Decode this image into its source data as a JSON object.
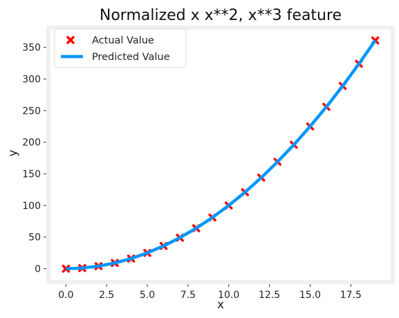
{
  "chart_data": {
    "type": "scatter",
    "title": "Normalized x x**2, x**3 feature",
    "xlabel": "x",
    "ylabel": "y",
    "xlim": [
      -0.95,
      19.95
    ],
    "ylim": [
      -18,
      378
    ],
    "xticks": [
      0.0,
      2.5,
      5.0,
      7.5,
      10.0,
      12.5,
      15.0,
      17.5
    ],
    "xtick_labels": [
      "0.0",
      "2.5",
      "5.0",
      "7.5",
      "10.0",
      "12.5",
      "15.0",
      "17.5"
    ],
    "yticks": [
      0,
      50,
      100,
      150,
      200,
      250,
      300,
      350
    ],
    "ytick_labels": [
      "0",
      "50",
      "100",
      "150",
      "200",
      "250",
      "300",
      "350"
    ],
    "grid": true,
    "legend_position": "top-left",
    "series": [
      {
        "name": "Actual Value",
        "kind": "scatter",
        "marker": "x",
        "color": "#ff0000",
        "x": [
          0,
          1,
          2,
          3,
          4,
          5,
          6,
          7,
          8,
          9,
          10,
          11,
          12,
          13,
          14,
          15,
          16,
          17,
          18,
          19
        ],
        "y": [
          0,
          1,
          4,
          9,
          16,
          25,
          36,
          49,
          64,
          81,
          100,
          121,
          144,
          169,
          196,
          225,
          256,
          289,
          324,
          361
        ]
      },
      {
        "name": "Predicted Value",
        "kind": "line",
        "color": "#0096ff",
        "x": [
          0,
          1,
          2,
          3,
          4,
          5,
          6,
          7,
          8,
          9,
          10,
          11,
          12,
          13,
          14,
          15,
          16,
          17,
          18,
          19
        ],
        "y": [
          0,
          1,
          4,
          9,
          16,
          25,
          36,
          49,
          64,
          81,
          100,
          121,
          144,
          169,
          196,
          225,
          256,
          289,
          324,
          361
        ]
      }
    ]
  },
  "colors": {
    "frame": "#f0f0f0",
    "grid": "#ffffff",
    "plot_background": "#ffffff"
  }
}
